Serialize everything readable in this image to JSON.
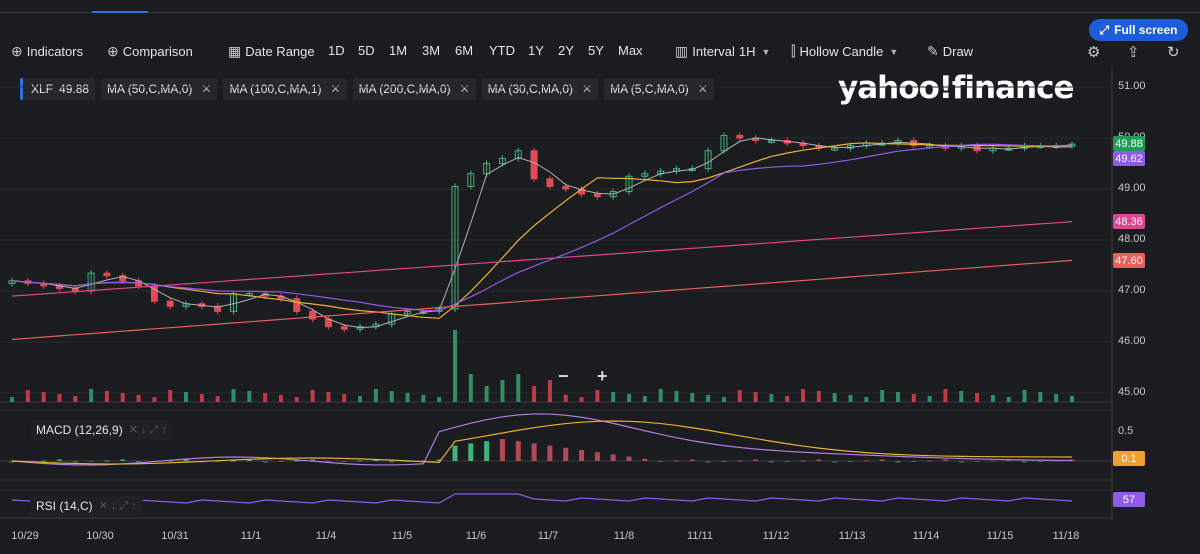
{
  "header": {
    "full_screen_label": "Full screen"
  },
  "toolbar": {
    "indicators_label": "Indicators",
    "comparison_label": "Comparison",
    "date_range_label": "Date Range",
    "ranges": [
      "1D",
      "5D",
      "1M",
      "3M",
      "6M",
      "YTD",
      "1Y",
      "2Y",
      "5Y",
      "Max"
    ],
    "interval_label": "Interval",
    "interval_value": "1H",
    "chart_type_label": "Hollow Candle",
    "draw_label": "Draw"
  },
  "chips": {
    "symbol": "XLF",
    "price": "49.88",
    "ma_items": [
      "MA (50,C,MA,0)",
      "MA (100,C,MA,1)",
      "MA (200,C,MA,0)",
      "MA (30,C,MA,0)",
      "MA (5,C,MA,0)"
    ],
    "close_glyph": "✕"
  },
  "logo_text": "yahoo!finance",
  "panes": {
    "macd_label": "MACD (12,26,9)",
    "rsi_label": "RSI (14,C)"
  },
  "price_axis": {
    "ticks": [
      "51.00",
      "50.00",
      "49.00",
      "48.00",
      "47.00",
      "46.00",
      "45.00"
    ],
    "macd_ticks": [
      "0.5"
    ],
    "badges": [
      {
        "value": "49.88",
        "color": "#1f9d55"
      },
      {
        "value": "49.62",
        "color": "#8e5be8"
      },
      {
        "value": "48.36",
        "color": "#e0458f"
      },
      {
        "value": "47.60",
        "color": "#e8605a"
      },
      {
        "value": "0.1",
        "color": "#f0a030"
      },
      {
        "value": "57",
        "color": "#8e5be8"
      }
    ]
  },
  "x_axis": {
    "labels": [
      "10/29",
      "10/30",
      "10/31",
      "11/1",
      "11/4",
      "11/5",
      "11/6",
      "11/7",
      "11/8",
      "11/11",
      "11/12",
      "11/13",
      "11/14",
      "11/15",
      "11/18"
    ]
  },
  "zoom": {
    "minus": "−",
    "plus": "+"
  },
  "chart_data": {
    "type": "candlestick",
    "symbol": "XLF",
    "interval": "1H",
    "last_price": 49.88,
    "ylim": [
      44.8,
      51.3
    ],
    "x_dates": [
      "10/29",
      "10/30",
      "10/31",
      "11/1",
      "11/4",
      "11/5",
      "11/6",
      "11/7",
      "11/8",
      "11/11",
      "11/12",
      "11/13",
      "11/14",
      "11/15",
      "11/18"
    ],
    "close_series": [
      47.2,
      47.15,
      47.1,
      47.05,
      47.0,
      47.35,
      47.3,
      47.2,
      47.1,
      46.8,
      46.7,
      46.75,
      46.7,
      46.6,
      46.95,
      46.95,
      46.9,
      46.85,
      46.6,
      46.45,
      46.3,
      46.25,
      46.3,
      46.35,
      46.55,
      46.6,
      46.6,
      46.65,
      49.05,
      49.3,
      49.5,
      49.6,
      49.75,
      49.2,
      49.05,
      49.0,
      48.9,
      48.85,
      48.95,
      49.25,
      49.3,
      49.35,
      49.4,
      49.4,
      49.75,
      50.05,
      50.0,
      49.95,
      49.95,
      49.9,
      49.85,
      49.8,
      49.8,
      49.85,
      49.9,
      49.9,
      49.95,
      49.85,
      49.85,
      49.8,
      49.85,
      49.75,
      49.8,
      49.8,
      49.85,
      49.85,
      49.85,
      49.88
    ],
    "series": [
      {
        "name": "MA (50,C,MA,0)",
        "last": 49.62,
        "color": "#8e5be8"
      },
      {
        "name": "MA (100,C,MA,1)",
        "last": 48.36,
        "color": "#e0458f"
      },
      {
        "name": "MA (200,C,MA,0)",
        "last": 47.6,
        "color": "#e8605a"
      },
      {
        "name": "MA (30,C,MA,0)",
        "color": "#e8b030"
      },
      {
        "name": "MA (5,C,MA,0)",
        "color": "#b0b0b4"
      }
    ],
    "macd": {
      "label": "MACD (12,26,9)",
      "last": 0.1
    },
    "rsi": {
      "label": "RSI (14,C)",
      "last": 57
    }
  }
}
